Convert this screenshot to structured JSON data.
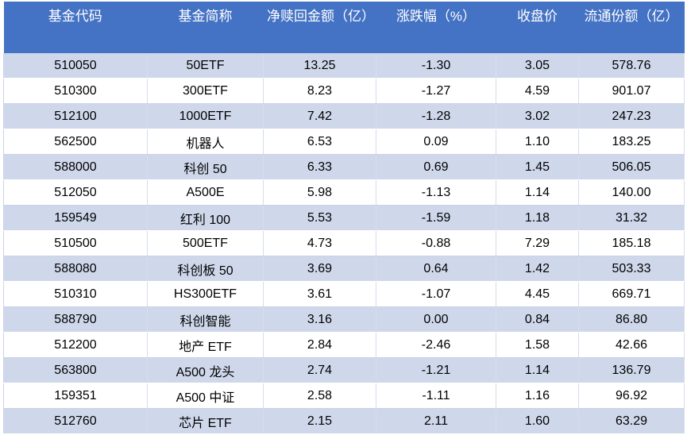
{
  "table": {
    "headers": [
      "基金代码",
      "基金简称",
      "净赎回金额（亿）",
      "涨跌幅（%）",
      "收盘价",
      "流通份额（亿）"
    ],
    "rows": [
      [
        "510050",
        "50ETF",
        "13.25",
        "-1.30",
        "3.05",
        "578.76"
      ],
      [
        "510300",
        "300ETF",
        "8.23",
        "-1.27",
        "4.59",
        "901.07"
      ],
      [
        "512100",
        "1000ETF",
        "7.42",
        "-1.28",
        "3.02",
        "247.23"
      ],
      [
        "562500",
        "机器人",
        "6.53",
        "0.09",
        "1.10",
        "183.25"
      ],
      [
        "588000",
        "科创 50",
        "6.33",
        "0.69",
        "1.45",
        "506.05"
      ],
      [
        "512050",
        "A500E",
        "5.98",
        "-1.13",
        "1.14",
        "140.00"
      ],
      [
        "159549",
        "红利 100",
        "5.53",
        "-1.59",
        "1.18",
        "31.32"
      ],
      [
        "510500",
        "500ETF",
        "4.73",
        "-0.88",
        "7.29",
        "185.18"
      ],
      [
        "588080",
        "科创板 50",
        "3.69",
        "0.64",
        "1.42",
        "503.33"
      ],
      [
        "510310",
        "HS300ETF",
        "3.61",
        "-1.07",
        "4.45",
        "669.71"
      ],
      [
        "588790",
        "科创智能",
        "3.16",
        "0.00",
        "0.84",
        "86.80"
      ],
      [
        "512200",
        "地产 ETF",
        "2.84",
        "-2.46",
        "1.58",
        "42.66"
      ],
      [
        "563800",
        "A500 龙头",
        "2.74",
        "-1.21",
        "1.14",
        "136.79"
      ],
      [
        "159351",
        "A500 中证",
        "2.58",
        "-1.11",
        "1.16",
        "96.92"
      ],
      [
        "512760",
        "芯片 ETF",
        "2.15",
        "2.11",
        "1.60",
        "63.29"
      ]
    ]
  }
}
